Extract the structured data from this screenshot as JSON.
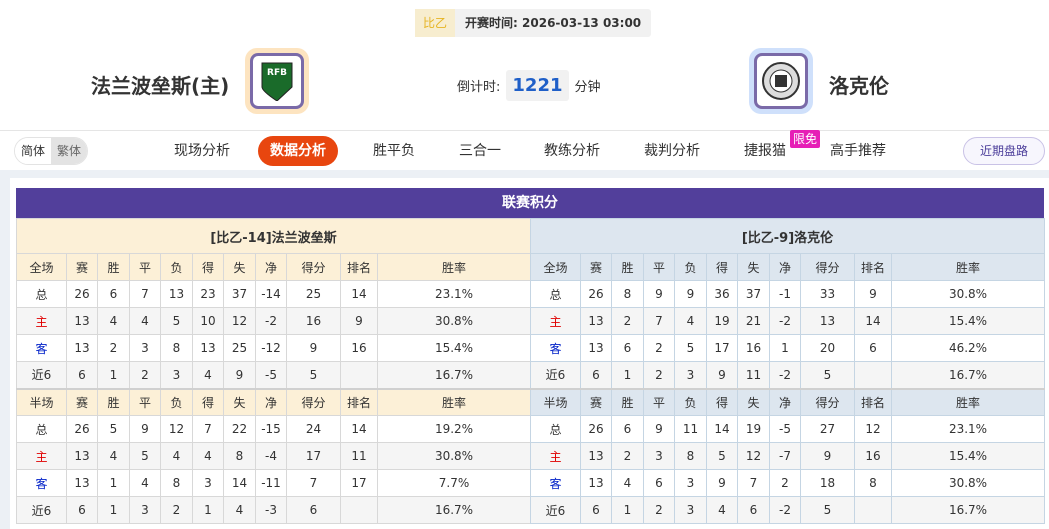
{
  "match": {
    "league": "比乙",
    "start_label": "开赛时间:",
    "start_time": "2026-03-13 03:00",
    "home": "法兰波垒斯(主)",
    "away": "洛克伦",
    "countdown_label": "倒计时:",
    "countdown": "1221",
    "countdown_unit": "分钟"
  },
  "nav": {
    "lang": [
      "简体",
      "繁体"
    ],
    "items": [
      "现场分析",
      "数据分析",
      "胜平负",
      "三合一",
      "教练分析",
      "裁判分析",
      "捷报猫",
      "高手推荐"
    ],
    "active": 1,
    "badge": "限免",
    "recent": "近期盘路"
  },
  "colors": {
    "accent": "#e8460f",
    "title_bar": "#523f9b"
  },
  "standings": {
    "title": "联赛积分",
    "headers_full": [
      "全场",
      "赛",
      "胜",
      "平",
      "负",
      "得",
      "失",
      "净",
      "得分",
      "排名",
      "胜率"
    ],
    "headers_half": [
      "半场",
      "赛",
      "胜",
      "平",
      "负",
      "得",
      "失",
      "净",
      "得分",
      "排名",
      "胜率"
    ],
    "home": {
      "name": "[比乙-14]法兰波垒斯",
      "full": [
        [
          "总",
          "26",
          "6",
          "7",
          "13",
          "23",
          "37",
          "-14",
          "25",
          "14",
          "23.1%"
        ],
        [
          "主",
          "13",
          "4",
          "4",
          "5",
          "10",
          "12",
          "-2",
          "16",
          "9",
          "30.8%"
        ],
        [
          "客",
          "13",
          "2",
          "3",
          "8",
          "13",
          "25",
          "-12",
          "9",
          "16",
          "15.4%"
        ],
        [
          "近6",
          "6",
          "1",
          "2",
          "3",
          "4",
          "9",
          "-5",
          "5",
          "",
          "16.7%"
        ]
      ],
      "half": [
        [
          "总",
          "26",
          "5",
          "9",
          "12",
          "7",
          "22",
          "-15",
          "24",
          "14",
          "19.2%"
        ],
        [
          "主",
          "13",
          "4",
          "5",
          "4",
          "4",
          "8",
          "-4",
          "17",
          "11",
          "30.8%"
        ],
        [
          "客",
          "13",
          "1",
          "4",
          "8",
          "3",
          "14",
          "-11",
          "7",
          "17",
          "7.7%"
        ],
        [
          "近6",
          "6",
          "1",
          "3",
          "2",
          "1",
          "4",
          "-3",
          "6",
          "",
          "16.7%"
        ]
      ]
    },
    "away": {
      "name": "[比乙-9]洛克伦",
      "full": [
        [
          "总",
          "26",
          "8",
          "9",
          "9",
          "36",
          "37",
          "-1",
          "33",
          "9",
          "30.8%"
        ],
        [
          "主",
          "13",
          "2",
          "7",
          "4",
          "19",
          "21",
          "-2",
          "13",
          "14",
          "15.4%"
        ],
        [
          "客",
          "13",
          "6",
          "2",
          "5",
          "17",
          "16",
          "1",
          "20",
          "6",
          "46.2%"
        ],
        [
          "近6",
          "6",
          "1",
          "2",
          "3",
          "9",
          "11",
          "-2",
          "5",
          "",
          "16.7%"
        ]
      ],
      "half": [
        [
          "总",
          "26",
          "6",
          "9",
          "11",
          "14",
          "19",
          "-5",
          "27",
          "12",
          "23.1%"
        ],
        [
          "主",
          "13",
          "2",
          "3",
          "8",
          "5",
          "12",
          "-7",
          "9",
          "16",
          "15.4%"
        ],
        [
          "客",
          "13",
          "4",
          "6",
          "3",
          "9",
          "7",
          "2",
          "18",
          "8",
          "30.8%"
        ],
        [
          "近6",
          "6",
          "1",
          "2",
          "3",
          "4",
          "6",
          "-2",
          "5",
          "",
          "16.7%"
        ]
      ]
    }
  }
}
